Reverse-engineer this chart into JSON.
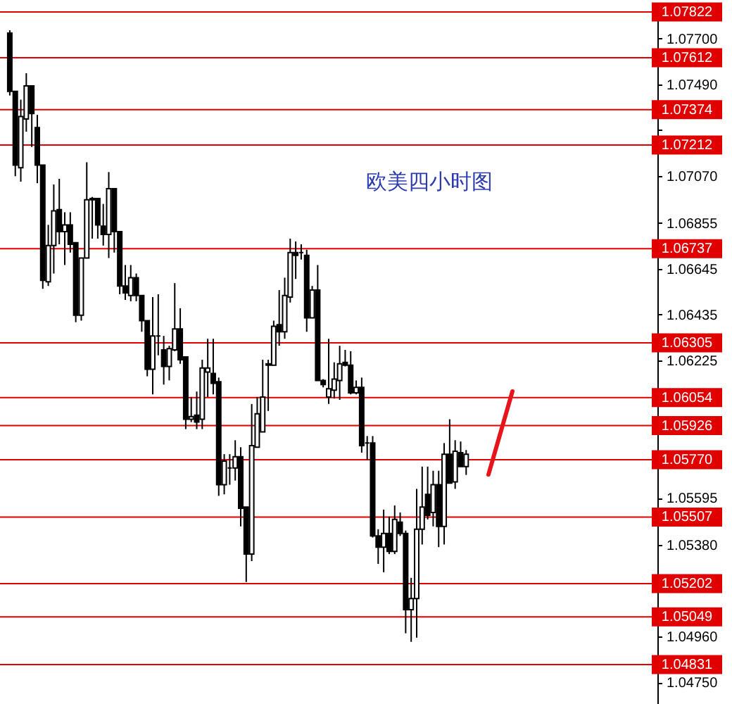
{
  "chart_data": {
    "type": "candlestick",
    "title": "欧美四小时图",
    "categories": [
      null,
      null,
      null,
      null,
      null,
      null,
      null,
      null,
      null,
      null,
      null,
      null,
      null,
      null,
      null,
      null,
      null,
      null,
      null,
      null,
      null,
      null,
      null,
      null,
      null,
      null,
      null,
      null,
      null,
      null,
      null,
      null,
      null,
      null,
      null,
      null,
      null,
      null,
      null,
      null,
      null,
      null,
      null,
      null,
      null,
      null,
      null,
      null,
      null,
      null,
      null,
      null,
      null,
      null,
      null,
      null,
      null,
      null,
      null,
      null,
      null,
      null,
      null,
      null,
      null,
      null,
      null,
      null,
      null,
      null,
      null,
      null,
      null,
      null,
      null,
      null,
      null,
      null,
      null,
      null,
      null,
      null,
      null,
      null,
      null,
      null,
      null,
      null,
      null,
      null,
      null,
      null,
      null,
      null,
      null,
      null,
      null,
      null,
      null,
      null,
      null,
      null,
      null,
      null,
      null,
      null,
      null,
      null,
      null,
      null,
      null,
      null,
      null,
      null,
      null,
      null,
      null
    ],
    "ohlc": [
      [
        1.07725,
        1.07738,
        1.07439,
        1.07458
      ],
      [
        1.07458,
        1.07458,
        1.07069,
        1.0712
      ],
      [
        1.07108,
        1.0742,
        1.07044,
        1.07343
      ],
      [
        1.07331,
        1.07541,
        1.07273,
        1.07483
      ],
      [
        1.07483,
        1.07483,
        1.07203,
        1.07356
      ],
      [
        1.07292,
        1.0735,
        1.07037,
        1.0712
      ],
      [
        1.0712,
        1.0712,
        1.06553,
        1.06592
      ],
      [
        1.06585,
        1.06846,
        1.06566,
        1.06751
      ],
      [
        1.06751,
        1.07031,
        1.06623,
        1.0691
      ],
      [
        1.06916,
        1.07057,
        1.06757,
        1.06815
      ],
      [
        1.06815,
        1.06904,
        1.06662,
        1.06846
      ],
      [
        1.06846,
        1.06904,
        1.06719,
        1.06757
      ],
      [
        1.06764,
        1.06764,
        1.064,
        1.06432
      ],
      [
        1.06432,
        1.06694,
        1.06407,
        1.06694
      ],
      [
        1.06694,
        1.07133,
        1.06694,
        1.06961
      ],
      [
        1.06961,
        1.06974,
        1.06783,
        1.06967
      ],
      [
        1.06967,
        1.06967,
        1.06783,
        1.06846
      ],
      [
        1.0684,
        1.06942,
        1.06751,
        1.06802
      ],
      [
        1.06802,
        1.07088,
        1.06694,
        1.07012
      ],
      [
        1.07012,
        1.07012,
        1.06719,
        1.06815
      ],
      [
        1.06815,
        1.06815,
        1.06528,
        1.06566
      ],
      [
        1.06566,
        1.06662,
        1.06502,
        1.06534
      ],
      [
        1.06522,
        1.06662,
        1.06496,
        1.06604
      ],
      [
        1.06604,
        1.06623,
        1.06496,
        1.06522
      ],
      [
        1.06522,
        1.06522,
        1.06356,
        1.06407
      ],
      [
        1.06407,
        1.06407,
        1.06152,
        1.06184
      ],
      [
        1.06184,
        1.06515,
        1.06069,
        1.06337
      ],
      [
        1.06337,
        1.06528,
        1.06248,
        1.06337
      ],
      [
        1.06273,
        1.06337,
        1.06114,
        1.06197
      ],
      [
        1.06197,
        1.06292,
        1.06133,
        1.06279
      ],
      [
        1.06273,
        1.06579,
        1.06267,
        1.06369
      ],
      [
        1.06369,
        1.06464,
        1.06209,
        1.06228
      ],
      [
        1.06241,
        1.06241,
        1.0591,
        1.05955
      ],
      [
        1.05955,
        1.06057,
        1.05942,
        1.05967
      ],
      [
        1.05974,
        1.06082,
        1.0591,
        1.05942
      ],
      [
        1.05955,
        1.06228,
        1.0591,
        1.0619
      ],
      [
        1.06171,
        1.06324,
        1.06057,
        1.0619
      ],
      [
        1.06165,
        1.06324,
        1.06069,
        1.0612
      ],
      [
        1.06127,
        1.06146,
        1.05604,
        1.05655
      ],
      [
        1.05655,
        1.05795,
        1.05611,
        1.05763
      ],
      [
        1.05732,
        1.05795,
        1.05655,
        1.05732
      ],
      [
        1.05732,
        1.05859,
        1.05674,
        1.05783
      ],
      [
        1.05783,
        1.05827,
        1.05464,
        1.05547
      ],
      [
        1.05553,
        1.05553,
        1.05209,
        1.05337
      ],
      [
        1.05337,
        1.06025,
        1.05305,
        1.05834
      ],
      [
        1.05827,
        1.06057,
        1.05827,
        1.0598
      ],
      [
        1.05897,
        1.06228,
        1.05897,
        1.06057
      ],
      [
        1.06203,
        1.06228,
        1.05993,
        1.06209
      ],
      [
        1.06203,
        1.06407,
        1.06203,
        1.06381
      ],
      [
        1.06388,
        1.06547,
        1.06292,
        1.06356
      ],
      [
        1.06356,
        1.06604,
        1.06324,
        1.06522
      ],
      [
        1.06515,
        1.06783,
        1.0649,
        1.06719
      ],
      [
        1.06719,
        1.0677,
        1.06598,
        1.06706
      ],
      [
        1.06719,
        1.06757,
        1.06687,
        1.06719
      ],
      [
        1.06706,
        1.06732,
        1.06356,
        1.0642
      ],
      [
        1.0642,
        1.06566,
        1.0642,
        1.06547
      ],
      [
        1.06547,
        1.06662,
        1.06133,
        1.06133
      ],
      [
        1.06133,
        1.06139,
        1.06101,
        1.06114
      ],
      [
        1.06057,
        1.06324,
        1.06025,
        1.06095
      ],
      [
        1.06088,
        1.06216,
        1.0605,
        1.06139
      ],
      [
        1.06133,
        1.06292,
        1.06044,
        1.06209
      ],
      [
        1.06216,
        1.06273,
        1.06197,
        1.06203
      ],
      [
        1.06203,
        1.06267,
        1.06069,
        1.06076
      ],
      [
        1.06076,
        1.06133,
        1.06069,
        1.06101
      ],
      [
        1.06101,
        1.06146,
        1.05802,
        1.05834
      ],
      [
        1.05846,
        1.05878,
        1.0577,
        1.05846
      ],
      [
        1.05846,
        1.05878,
        1.05413,
        1.0542
      ],
      [
        1.0542,
        1.05451,
        1.05292,
        1.05369
      ],
      [
        1.05369,
        1.05541,
        1.05254,
        1.05432
      ],
      [
        1.05432,
        1.05509,
        1.05337,
        1.05349
      ],
      [
        1.05349,
        1.0556,
        1.05337,
        1.05496
      ],
      [
        1.05483,
        1.05528,
        1.0542,
        1.05432
      ],
      [
        1.05432,
        1.05445,
        1.04974,
        1.05082
      ],
      [
        1.05082,
        1.05228,
        1.04935,
        1.05133
      ],
      [
        1.05133,
        1.05636,
        1.04954,
        1.05451
      ],
      [
        1.05451,
        1.05738,
        1.05381,
        1.05553
      ],
      [
        1.05611,
        1.05738,
        1.05496,
        1.05515
      ],
      [
        1.05528,
        1.05719,
        1.05464,
        1.05655
      ],
      [
        1.05655,
        1.05719,
        1.05369,
        1.05464
      ],
      [
        1.05464,
        1.05846,
        1.05381,
        1.05795
      ],
      [
        1.05795,
        1.05955,
        1.05662,
        1.05662
      ],
      [
        1.05668,
        1.05859,
        1.05636,
        1.05808
      ],
      [
        1.05802,
        1.05853,
        1.05738,
        1.05738
      ],
      [
        1.05738,
        1.05814,
        1.057,
        1.05795
      ],
      null,
      null,
      null,
      null,
      null,
      null,
      null,
      null,
      null,
      null,
      null,
      null,
      null,
      null,
      null,
      null,
      null,
      null,
      null,
      null,
      null,
      null,
      null,
      null,
      null,
      null,
      null,
      null,
      null,
      null,
      null,
      null,
      null
    ],
    "ylim": [
      1.0465,
      1.07825
    ],
    "yticks": [
      {
        "value": 1.077,
        "label": "1.07700"
      },
      {
        "value": 1.0749,
        "label": "1.07490"
      },
      {
        "value": 1.0728,
        "label": null
      },
      {
        "value": 1.0707,
        "label": "1.07070"
      },
      {
        "value": 1.06855,
        "label": "1.06855"
      },
      {
        "value": 1.06645,
        "label": "1.06645"
      },
      {
        "value": 1.06435,
        "label": "1.06435"
      },
      {
        "value": 1.06225,
        "label": "1.06225"
      },
      {
        "value": 1.06015,
        "label": null
      },
      {
        "value": 1.05595,
        "label": "1.05595"
      },
      {
        "value": 1.0538,
        "label": "1.05380"
      },
      {
        "value": 1.0517,
        "label": null
      },
      {
        "value": 1.0496,
        "label": "1.04960"
      },
      {
        "value": 1.0475,
        "label": "1.04750"
      }
    ],
    "ref_lines": [
      {
        "axis": "y",
        "value": 1.07822,
        "label": "1.07822",
        "color": "#e00000"
      },
      {
        "axis": "y",
        "value": 1.07612,
        "label": "1.07612",
        "color": "#e00000"
      },
      {
        "axis": "y",
        "value": 1.07374,
        "label": "1.07374",
        "color": "#e00000"
      },
      {
        "axis": "y",
        "value": 1.07212,
        "label": "1.07212",
        "color": "#e00000"
      },
      {
        "axis": "y",
        "value": 1.06737,
        "label": "1.06737",
        "color": "#e00000"
      },
      {
        "axis": "y",
        "value": 1.06305,
        "label": "1.06305",
        "color": "#e00000"
      },
      {
        "axis": "y",
        "value": 1.06054,
        "label": "1.06054",
        "color": "#e00000"
      },
      {
        "axis": "y",
        "value": 1.05926,
        "label": "1.05926",
        "color": "#e00000"
      },
      {
        "axis": "y",
        "value": 1.0577,
        "label": "1.05770",
        "color": "#e00000"
      },
      {
        "axis": "y",
        "value": 1.05507,
        "label": "1.05507",
        "color": "#e00000"
      },
      {
        "axis": "y",
        "value": 1.05202,
        "label": "1.05202",
        "color": "#e00000"
      },
      {
        "axis": "y",
        "value": 1.05049,
        "label": "1.05049",
        "color": "#e00000"
      },
      {
        "axis": "y",
        "value": 1.04831,
        "label": "1.04831",
        "color": "#e00000"
      }
    ],
    "grid": false
  }
}
